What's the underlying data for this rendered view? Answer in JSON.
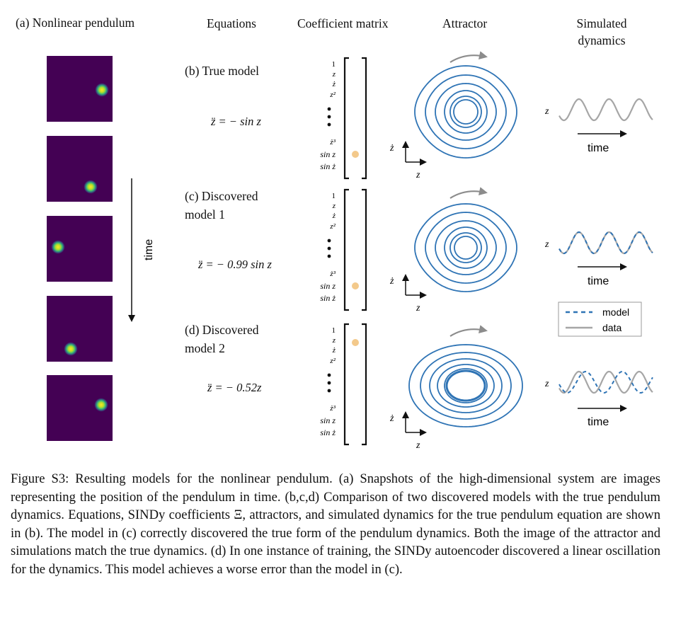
{
  "headers": {
    "col_a": "(a) Nonlinear pendulum",
    "equations": "Equations",
    "coef": "Coefficient matrix",
    "attractor": "Attractor",
    "simulated": "Simulated dynamics"
  },
  "rows": [
    {
      "label": "(b) True model",
      "equation": "z̈ = − sin z"
    },
    {
      "label": "(c) Discovered model 1",
      "equation": "z̈ = − 0.99 sin z"
    },
    {
      "label": "(d) Discovered model 2",
      "equation": "z̈ = − 0.52z"
    }
  ],
  "library_terms": [
    "1",
    "z",
    "ż",
    "z²",
    "ż³",
    "sin z",
    "sin ż"
  ],
  "time_label": "time",
  "axis_labels": {
    "x": "z",
    "y": "ż",
    "sim_y": "z"
  },
  "legend": {
    "model": "model",
    "data": "data"
  },
  "caption": {
    "prefix": "Figure S3:",
    "text": " Resulting models for the nonlinear pendulum. (a) Snapshots of the high-dimensional system are images representing the position of the pendulum in time. (b,c,d) Comparison of two discovered models with the true pendulum dynamics. Equations, SINDy coefficients Ξ, attractors, and simulated dynamics for the true pendulum equation are shown in (b). The model in (c) correctly discovered the true form of the pendulum dynamics. Both the image of the attractor and simulations match the true dynamics. (d) In one instance of training, the SINDy autoencoder discovered a linear oscillation for the dynamics. This model achieves a worse error than the model in (c)."
  },
  "colors": {
    "snapshot_bg": "#440154",
    "blob_center": "#fde725",
    "blob_mid": "#35b779",
    "orbit": "#2f74b5",
    "coef_dot": "#f3c98b",
    "data_line": "#a6a6a6",
    "model_line": "#2f74b5"
  }
}
